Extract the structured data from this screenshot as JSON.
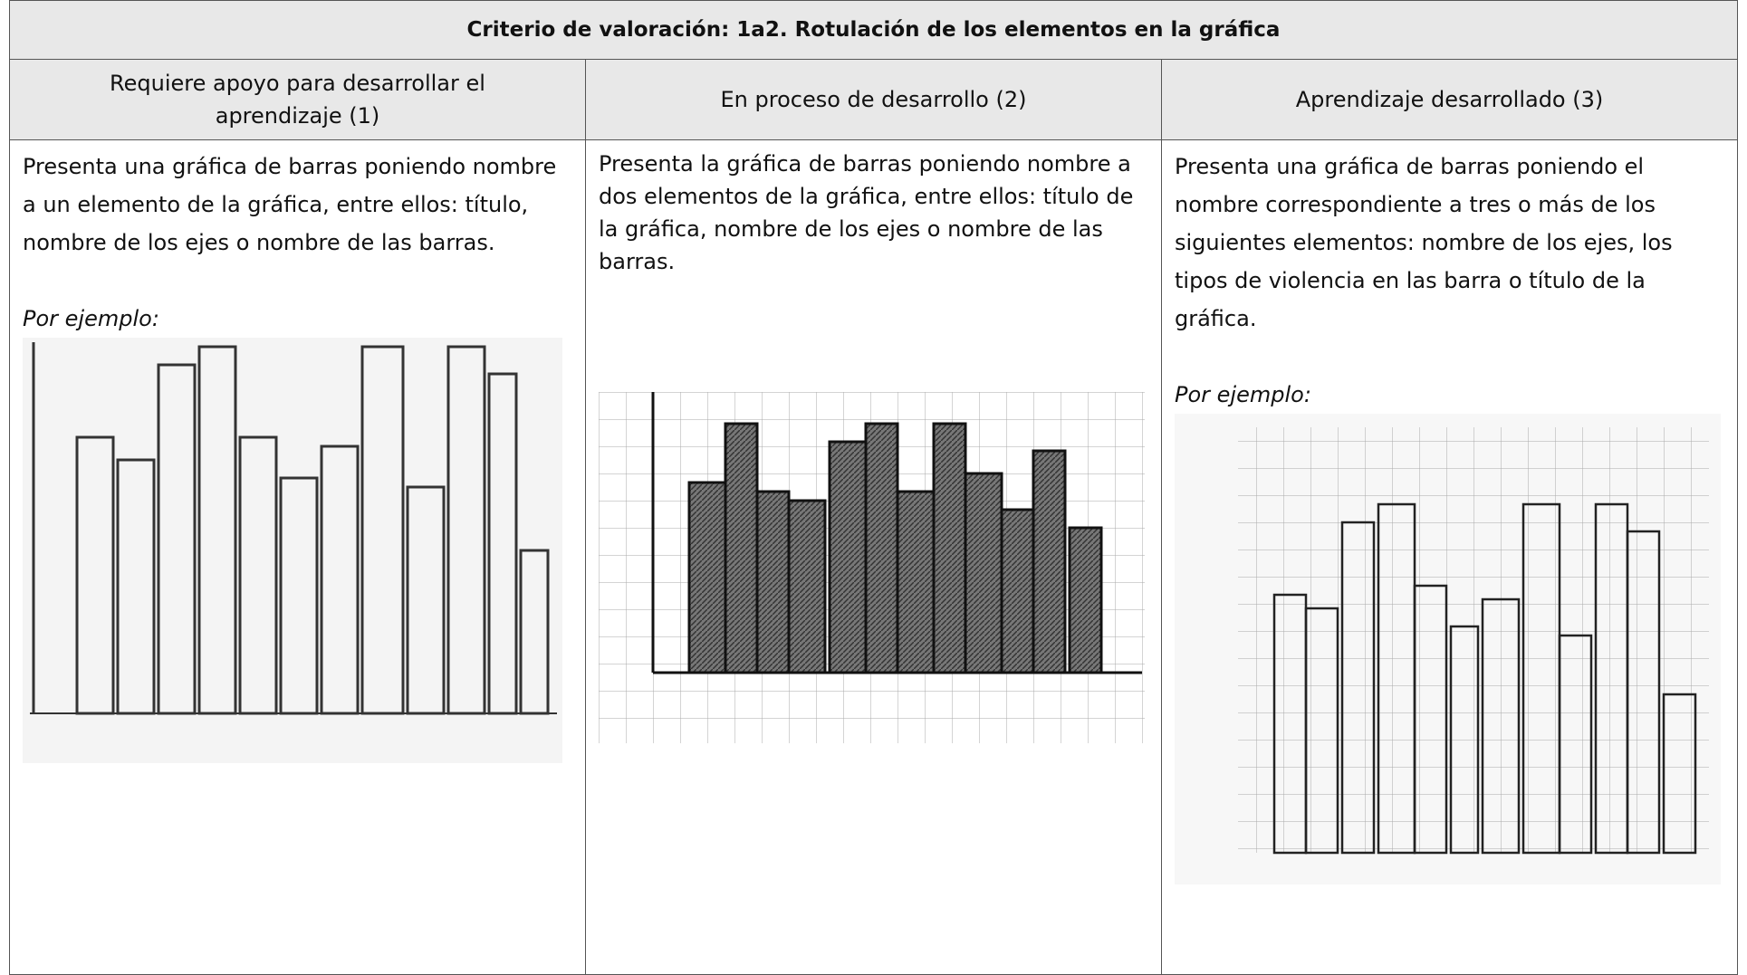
{
  "table": {
    "title": "Criterio de valoración: 1a2. Rotulación de los elementos en la gráfica",
    "headers": [
      "Requiere apoyo para desarrollar el aprendizaje (1)",
      "En proceso de desarrollo (2)",
      "Aprendizaje desarrollado (3)"
    ],
    "cells": [
      {
        "text": "Presenta una gráfica de barras poniendo nombre a un elemento de la gráfica, entre ellos: título, nombre de los ejes o nombre de las barras.",
        "example_label": "Por ejemplo:"
      },
      {
        "text": "Presenta la gráfica de barras poniendo nombre a dos elementos de la gráfica, entre ellos: título de la gráfica, nombre de los ejes o nombre de las barras."
      },
      {
        "text": "Presenta una gráfica de barras poniendo el nombre correspondiente a tres o más de los siguientes elementos: nombre de los ejes, los tipos de violencia en las barra o título de la gráfica.",
        "example_label": "Por ejemplo:"
      }
    ]
  }
}
